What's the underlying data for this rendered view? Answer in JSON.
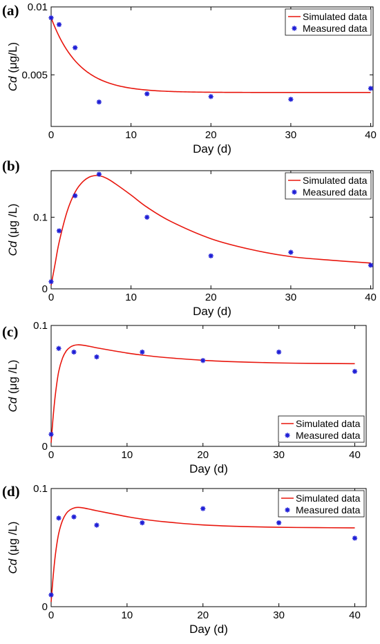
{
  "colors": {
    "simulated": "#e8150c",
    "measured": "#1f1fd6"
  },
  "chart_data": [
    {
      "type": "line+scatter",
      "panel_label": "(a)",
      "xlabel": "Day (d)",
      "ylabel_italic": "Cd",
      "ylabel_unit": " (μg/L)",
      "xlim": [
        0,
        40.3
      ],
      "ylim": [
        0.0012,
        0.01
      ],
      "xticks": [
        0,
        10,
        20,
        30,
        40
      ],
      "xtick_labels": [
        "0",
        "10",
        "20",
        "30",
        "40"
      ],
      "yticks": [
        0.005,
        0.01
      ],
      "ytick_labels": [
        "0.005",
        "0.01"
      ],
      "legend": [
        "Simulated data",
        "Measured data"
      ],
      "legend_position": "top-right",
      "simulated": {
        "c0": 0.0092,
        "cinf": 0.0037,
        "tau": 3.5
      },
      "measured": {
        "x": [
          0,
          1,
          3,
          6,
          12,
          20,
          30,
          40
        ],
        "y": [
          0.0092,
          0.0087,
          0.007,
          0.003,
          0.0036,
          0.0034,
          0.0032,
          0.004
        ]
      }
    },
    {
      "type": "line+scatter",
      "panel_label": "(b)",
      "xlabel": "Day (d)",
      "ylabel_italic": "Cd",
      "ylabel_unit": " (μg /L)",
      "xlim": [
        0,
        40.3
      ],
      "ylim": [
        0,
        0.165
      ],
      "xticks": [
        0,
        10,
        20,
        30,
        40
      ],
      "xtick_labels": [
        "0",
        "10",
        "20",
        "30",
        "40"
      ],
      "yticks": [
        0,
        0.1
      ],
      "ytick_labels": [
        "0",
        "0.1"
      ],
      "legend": [
        "Simulated data",
        "Measured data"
      ],
      "legend_position": "top-right",
      "simulated": {
        "x": [
          0,
          0.5,
          1,
          2,
          3,
          4,
          5,
          6,
          7,
          8,
          10,
          12,
          15,
          20,
          25,
          30,
          35,
          40
        ],
        "y": [
          0.005,
          0.035,
          0.065,
          0.108,
          0.135,
          0.15,
          0.157,
          0.158,
          0.154,
          0.147,
          0.131,
          0.114,
          0.094,
          0.07,
          0.055,
          0.045,
          0.04,
          0.036
        ]
      },
      "measured": {
        "x": [
          0,
          1,
          3,
          6,
          12,
          20,
          30,
          40
        ],
        "y": [
          0.01,
          0.081,
          0.13,
          0.16,
          0.1,
          0.046,
          0.051,
          0.033
        ]
      }
    },
    {
      "type": "line+scatter",
      "panel_label": "(c)",
      "xlabel": "Day (d)",
      "ylabel_italic": "Cd",
      "ylabel_unit": " (μg /L)",
      "xlim": [
        0,
        41.5
      ],
      "ylim": [
        0,
        0.1
      ],
      "xticks": [
        0,
        10,
        20,
        30,
        40
      ],
      "xtick_labels": [
        "0",
        "10",
        "20",
        "30",
        "40"
      ],
      "yticks": [
        0,
        0.1
      ],
      "ytick_labels": [
        "0",
        "0.1"
      ],
      "legend": [
        "Simulated data",
        "Measured data"
      ],
      "legend_position": "bottom-right",
      "simulated": {
        "x": [
          0,
          0.3,
          0.6,
          1,
          1.5,
          2,
          2.5,
          3,
          3.5,
          4,
          5,
          6,
          8,
          10,
          12,
          15,
          20,
          25,
          30,
          35,
          40
        ],
        "y": [
          0.003,
          0.027,
          0.045,
          0.062,
          0.073,
          0.079,
          0.082,
          0.0835,
          0.084,
          0.0838,
          0.0828,
          0.0815,
          0.0793,
          0.0772,
          0.0755,
          0.0735,
          0.0712,
          0.0698,
          0.069,
          0.0686,
          0.0684
        ]
      },
      "measured": {
        "x": [
          0,
          1,
          3,
          6,
          12,
          20,
          30,
          40
        ],
        "y": [
          0.01,
          0.081,
          0.078,
          0.074,
          0.078,
          0.071,
          0.078,
          0.062
        ]
      }
    },
    {
      "type": "line+scatter",
      "panel_label": "(d)",
      "xlabel": "Day (d)",
      "ylabel_italic": "Cd",
      "ylabel_unit": " (μg /L)",
      "xlim": [
        0,
        41.5
      ],
      "ylim": [
        0,
        0.1
      ],
      "xticks": [
        0,
        10,
        20,
        30,
        40
      ],
      "xtick_labels": [
        "0",
        "10",
        "20",
        "30",
        "40"
      ],
      "yticks": [
        0,
        0.1
      ],
      "ytick_labels": [
        "0",
        "0.1"
      ],
      "legend": [
        "Simulated data",
        "Measured data"
      ],
      "legend_position": "top-right",
      "simulated": {
        "x": [
          0,
          0.3,
          0.6,
          1,
          1.5,
          2,
          2.5,
          3,
          3.5,
          4,
          5,
          6,
          8,
          10,
          12,
          15,
          20,
          25,
          30,
          35,
          40
        ],
        "y": [
          0.004,
          0.028,
          0.046,
          0.062,
          0.073,
          0.079,
          0.082,
          0.0835,
          0.084,
          0.0838,
          0.0826,
          0.0812,
          0.0787,
          0.0762,
          0.0741,
          0.0718,
          0.0692,
          0.0679,
          0.0672,
          0.0669,
          0.0667
        ]
      },
      "measured": {
        "x": [
          0,
          1,
          3,
          6,
          12,
          20,
          30,
          40
        ],
        "y": [
          0.01,
          0.075,
          0.076,
          0.069,
          0.071,
          0.083,
          0.071,
          0.058
        ]
      }
    }
  ]
}
